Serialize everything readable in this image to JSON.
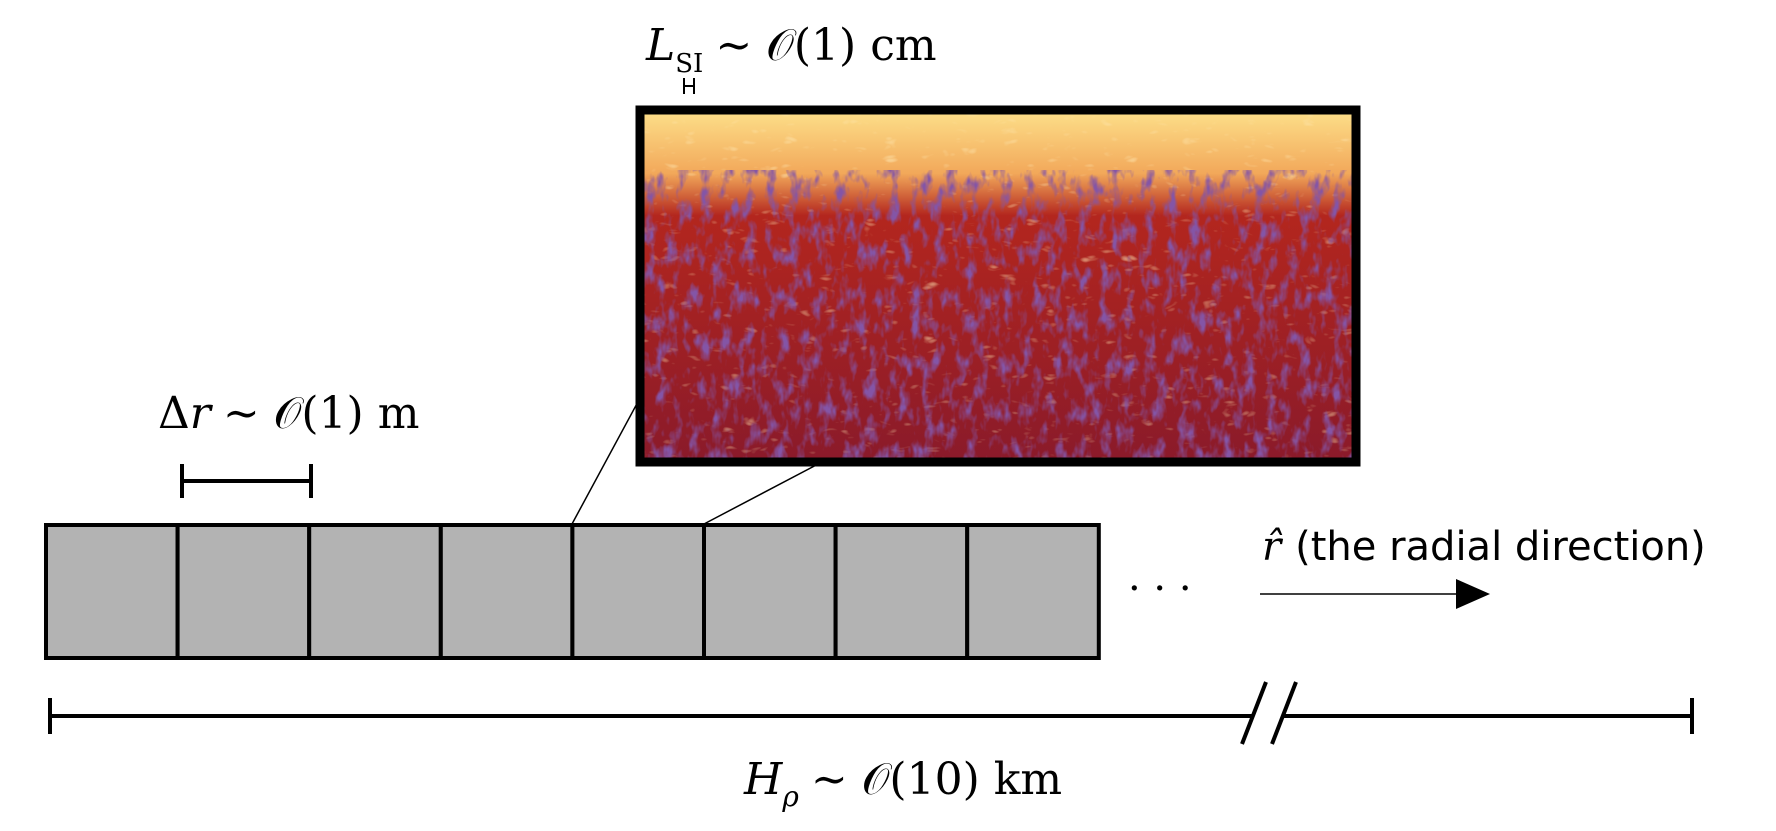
{
  "labels": {
    "lsi_main": "L",
    "lsi_sub": "SI",
    "lsi_rest": "∼ 𝒪(1) cm",
    "dr_delta": "Δ",
    "dr_var": "r",
    "dr_rest": "∼ 𝒪(1) m",
    "h_main": "H",
    "h_sub": "ρ",
    "h_rest": "∼ 𝒪(10) km",
    "r_hat": "r̂",
    "r_text": "(the radial direction)",
    "ellipsis": "· · ·"
  },
  "colors": {
    "cell_fill": "#b3b3b3",
    "stroke": "#000000",
    "turb_dark": "#3a1660",
    "turb_mid": "#b3261e",
    "turb_light": "#fde08a"
  }
}
